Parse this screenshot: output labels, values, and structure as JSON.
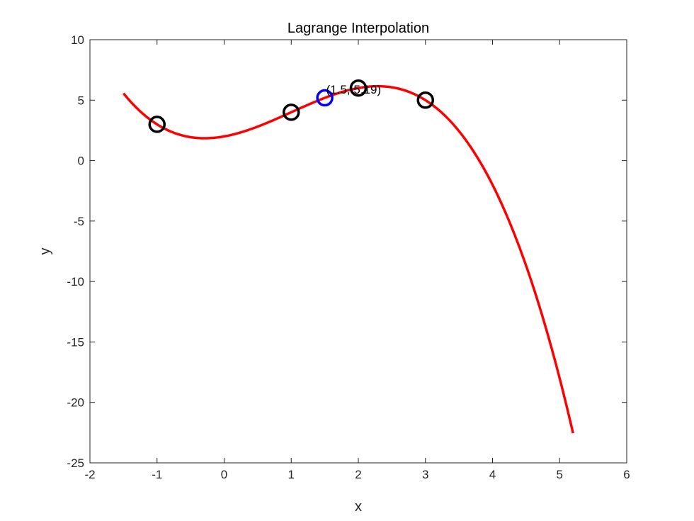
{
  "chart_data": {
    "type": "line",
    "title": "Lagrange Interpolation",
    "xlabel": "x",
    "ylabel": "y",
    "xlim": [
      -2,
      6
    ],
    "ylim": [
      -25,
      10
    ],
    "xticks": [
      -2,
      -1,
      0,
      1,
      2,
      3,
      4,
      5,
      6
    ],
    "yticks": [
      -25,
      -20,
      -15,
      -10,
      -5,
      0,
      5,
      10
    ],
    "grid": false,
    "series": [
      {
        "kind": "line",
        "color": "#ff0000",
        "x_range": [
          -1.5,
          5.2
        ],
        "nodes": [
          [
            -1,
            3
          ],
          [
            1,
            4
          ],
          [
            2,
            6
          ],
          [
            3,
            5
          ]
        ]
      },
      {
        "kind": "markers",
        "marker": "circle",
        "color": "#000000",
        "x": [
          -1,
          1,
          2,
          3
        ],
        "y": [
          3,
          4,
          6,
          5
        ]
      },
      {
        "kind": "markers",
        "marker": "circle",
        "color": "#0000ff",
        "x": [
          1.5
        ],
        "y": [
          5.19
        ]
      }
    ],
    "annotations": [
      {
        "text": "(1.5, 5.19)",
        "x": 1.5,
        "y": 5.19
      }
    ]
  }
}
